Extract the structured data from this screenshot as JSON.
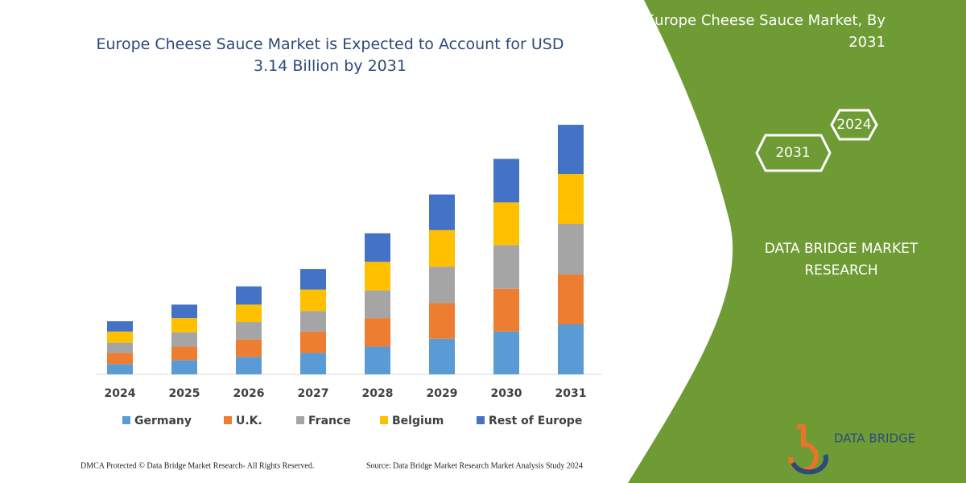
{
  "chart_data": {
    "type": "stacked-bar",
    "title": "Europe Cheese Sauce Market is Expected to Account for USD 3.14 Billion by 2031",
    "categories": [
      "2024",
      "2025",
      "2026",
      "2027",
      "2028",
      "2029",
      "2030",
      "2031"
    ],
    "series": [
      {
        "name": "Germany",
        "color": "#5b9bd5",
        "values": [
          0.13,
          0.18,
          0.22,
          0.27,
          0.35,
          0.45,
          0.54,
          0.63
        ]
      },
      {
        "name": "U.K.",
        "color": "#ed7d31",
        "values": [
          0.14,
          0.17,
          0.22,
          0.27,
          0.36,
          0.45,
          0.54,
          0.63
        ]
      },
      {
        "name": "France",
        "color": "#a5a5a5",
        "values": [
          0.13,
          0.18,
          0.22,
          0.26,
          0.35,
          0.46,
          0.55,
          0.64
        ]
      },
      {
        "name": "Belgium",
        "color": "#ffc000",
        "values": [
          0.14,
          0.18,
          0.22,
          0.27,
          0.36,
          0.46,
          0.54,
          0.63
        ]
      },
      {
        "name": "Rest of Europe",
        "color": "#4472c4",
        "values": [
          0.13,
          0.17,
          0.23,
          0.26,
          0.36,
          0.45,
          0.55,
          0.62
        ]
      }
    ]
  },
  "panel": {
    "title": "Europe Cheese Sauce Market, By 2031",
    "badge_1": "2024",
    "badge_2": "2031",
    "brand": "DATA BRIDGE MARKET RESEARCH",
    "logo": "DATA BRIDGE"
  },
  "footer": {
    "left": "DMCA Protected © Data Bridge Market Research-  All Rights Reserved.",
    "right": "Source: Data Bridge Market Research  Market Analysis Study 2024"
  }
}
